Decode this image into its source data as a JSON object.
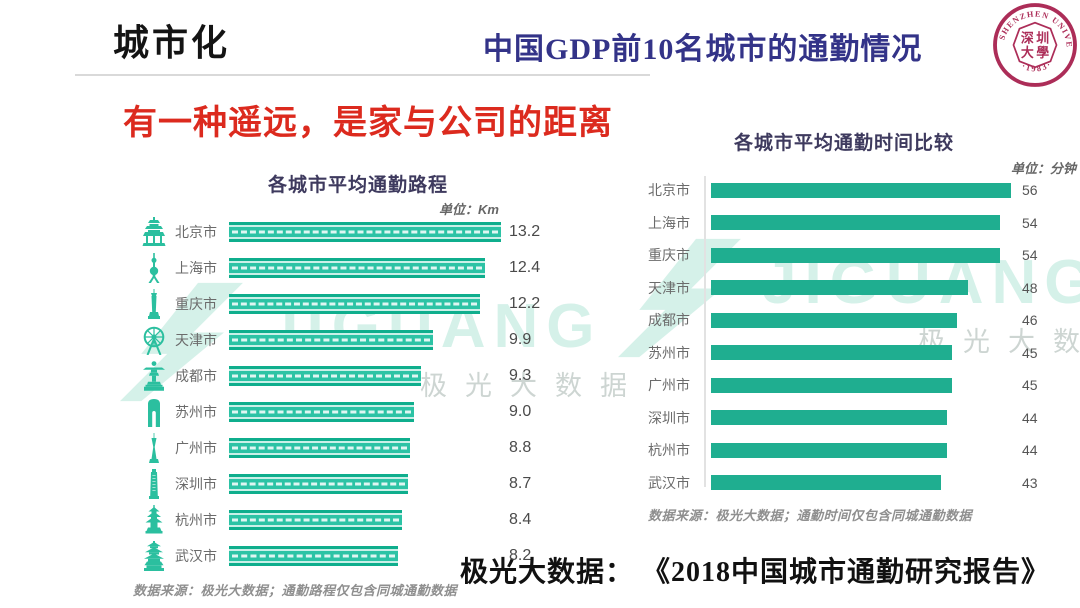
{
  "header": {
    "section_title": "城市化",
    "main_title": "中国GDP前10名城市的通勤情况",
    "logo": {
      "ring_text": "SHENZHEN UNIVERSITY",
      "year_text": "·1983·",
      "center_chars": [
        "深",
        "圳",
        "大",
        "學"
      ]
    }
  },
  "headline": "有一种遥远，是家与公司的距离",
  "watermark": {
    "brand": "JIGUANG",
    "subtext": "极光大数据"
  },
  "chart_data": [
    {
      "type": "bar",
      "orientation": "horizontal",
      "title": "各城市平均通勤路程",
      "unit": "单位：Km",
      "categories": [
        "北京市",
        "上海市",
        "重庆市",
        "天津市",
        "成都市",
        "苏州市",
        "广州市",
        "深圳市",
        "杭州市",
        "武汉市"
      ],
      "values": [
        13.2,
        12.4,
        12.2,
        9.9,
        9.3,
        9.0,
        8.8,
        8.7,
        8.4,
        8.2
      ],
      "value_labels": [
        "13.2",
        "12.4",
        "12.2",
        "9.9",
        "9.3",
        "9.0",
        "8.8",
        "8.7",
        "8.4",
        "8.2"
      ],
      "icons": [
        "temple-of-heaven",
        "oriental-pearl",
        "chongqing-tower",
        "tianjin-eye",
        "chengdu-statue",
        "gate-of-orient",
        "canton-tower",
        "shenzhen-tower",
        "leifeng-pagoda",
        "yellow-crane-tower"
      ],
      "xlim": [
        0,
        13.2
      ],
      "grid": false,
      "bar_color": "#2cc3a5",
      "source": "数据来源：极光大数据；通勤路程仅包含同城通勤数据"
    },
    {
      "type": "bar",
      "orientation": "horizontal",
      "title": "各城市平均通勤时间比较",
      "unit": "单位：分钟",
      "categories": [
        "北京市",
        "上海市",
        "重庆市",
        "天津市",
        "成都市",
        "苏州市",
        "广州市",
        "深圳市",
        "杭州市",
        "武汉市"
      ],
      "values": [
        56,
        54,
        54,
        48,
        46,
        45,
        45,
        44,
        44,
        43
      ],
      "xlim": [
        0,
        56
      ],
      "grid": false,
      "bar_color": "#1FAE90",
      "source": "数据来源：极光大数据；通勤时间仅包含同城通勤数据"
    }
  ],
  "footer": {
    "caption": "极光大数据： 《2018中国城市通勤研究报告》"
  },
  "colors": {
    "headline_red": "#DC2A1E",
    "main_title_blue": "#333388",
    "chart_title_purple": "#3E3A5E",
    "bar_green": "#2cc3a5",
    "bar_green_dark": "#0fae8d",
    "bar_solid_green": "#1FAE90",
    "logo_crimson": "#AC2D58",
    "watermark_green": "#3FBF9A"
  }
}
